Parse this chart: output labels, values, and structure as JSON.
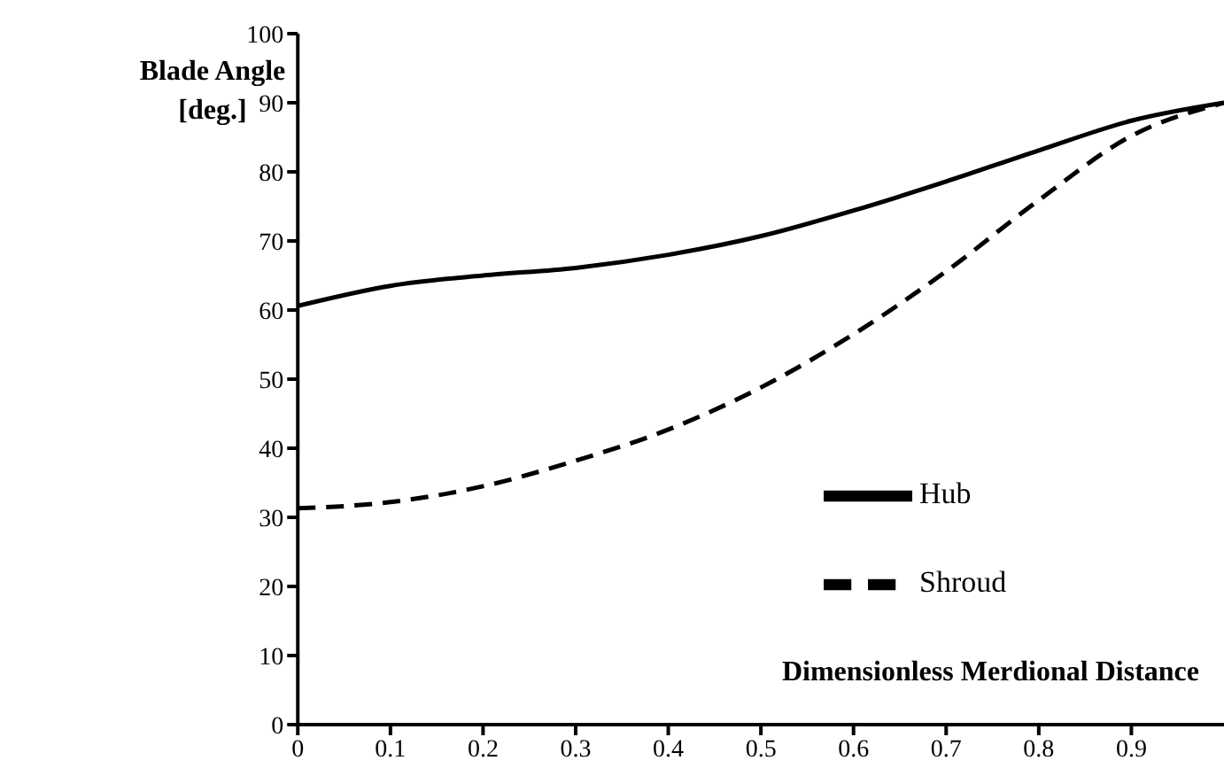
{
  "chart_data": {
    "type": "line",
    "ylabel": "Blade Angle [deg.]",
    "xlabel": "Dimensionless Merdional Distance",
    "x": [
      0,
      0.1,
      0.2,
      0.3,
      0.4,
      0.5,
      0.6,
      0.7,
      0.8,
      0.9,
      1
    ],
    "series": [
      {
        "name": "Hub",
        "color": "#000000",
        "line_style": "solid",
        "values": [
          60.6,
          63.5,
          65.0,
          66.1,
          68.0,
          70.7,
          74.4,
          78.6,
          83.1,
          87.4,
          90
        ]
      },
      {
        "name": "Shroud",
        "color": "#000000",
        "line_style": "dashed",
        "values": [
          31.3,
          32.2,
          34.5,
          38.2,
          42.7,
          48.8,
          56.5,
          65.6,
          75.9,
          85.2,
          90
        ]
      }
    ],
    "xlim": [
      0,
      1
    ],
    "xticks": [
      0,
      0.1,
      0.2,
      0.3,
      0.4,
      0.5,
      0.6,
      0.7,
      0.8,
      0.9
    ],
    "ylim": [
      0,
      100
    ],
    "yticks": [
      0,
      10,
      20,
      30,
      40,
      50,
      60,
      70,
      80,
      90,
      100
    ],
    "grid": false,
    "legend": "right",
    "marker": "none"
  }
}
